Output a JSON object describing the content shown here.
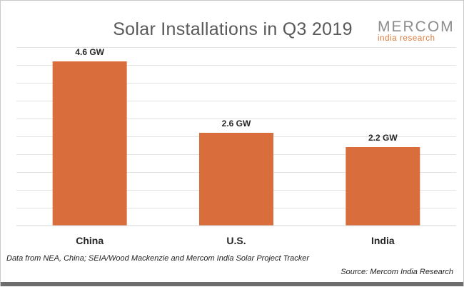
{
  "chart_data": {
    "type": "bar",
    "title": "Solar Installations in Q3 2019",
    "categories": [
      "China",
      "U.S.",
      "India"
    ],
    "values": [
      4.6,
      2.6,
      2.2
    ],
    "data_labels": [
      "4.6 GW",
      "2.6 GW",
      "2.2 GW"
    ],
    "unit": "GW",
    "ylim": [
      0,
      5
    ],
    "grid": true,
    "legend": "none",
    "bar_color": "#D96D3B",
    "grid_color": "#e3e3e3"
  },
  "logo": {
    "name": "MERCOM",
    "subtitle": "india research",
    "name_color": "#8c8c8c",
    "subtitle_color": "#e07b39"
  },
  "footer": {
    "note": "Data from NEA, China; SEIA/Wood Mackenzie and Mercom India Solar Project Tracker",
    "source": "Source: Mercom India Research"
  }
}
